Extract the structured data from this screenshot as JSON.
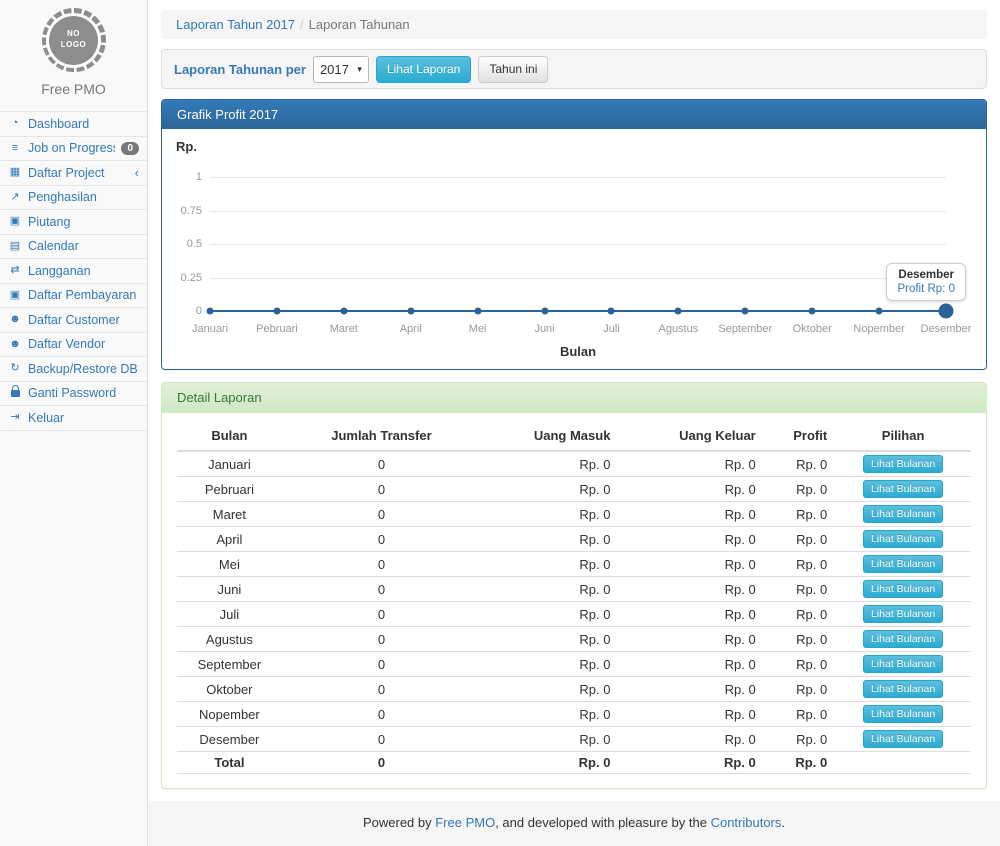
{
  "sidebar": {
    "logo_text_line1": "NO",
    "logo_text_line2": "LOGO",
    "app_name": "Free PMO",
    "items": [
      {
        "name": "dashboard",
        "label": "Dashboard",
        "icon": "dashboard-icon",
        "glyph": "◔"
      },
      {
        "name": "job-on-progress",
        "label": "Job on Progress",
        "icon": "tasks-icon",
        "glyph": "≡",
        "badge": "0"
      },
      {
        "name": "daftar-project",
        "label": "Daftar Project",
        "icon": "table-icon",
        "glyph": "▦",
        "chevron": "‹"
      },
      {
        "name": "penghasilan",
        "label": "Penghasilan",
        "icon": "line-chart-icon",
        "glyph": "↗"
      },
      {
        "name": "piutang",
        "label": "Piutang",
        "icon": "money-icon",
        "glyph": "▣"
      },
      {
        "name": "calendar",
        "label": "Calendar",
        "icon": "calendar-icon",
        "glyph": "▤"
      },
      {
        "name": "langganan",
        "label": "Langganan",
        "icon": "retweet-icon",
        "glyph": "⇄"
      },
      {
        "name": "daftar-pembayaran",
        "label": "Daftar Pembayaran",
        "icon": "money-icon",
        "glyph": "▣"
      },
      {
        "name": "daftar-customer",
        "label": "Daftar Customer",
        "icon": "users-icon",
        "glyph": "☻"
      },
      {
        "name": "daftar-vendor",
        "label": "Daftar Vendor",
        "icon": "users-icon",
        "glyph": "☻"
      },
      {
        "name": "backup-restore-db",
        "label": "Backup/Restore DB",
        "icon": "refresh-icon",
        "glyph": "↻"
      },
      {
        "name": "ganti-password",
        "label": "Ganti Password",
        "icon": "lock-icon",
        "icon_type": "css-lock"
      },
      {
        "name": "keluar",
        "label": "Keluar",
        "icon": "sign-out-icon",
        "glyph": "⇥"
      }
    ]
  },
  "breadcrumb": {
    "link": "Laporan Tahun 2017",
    "separator": "/",
    "current": "Laporan Tahunan"
  },
  "filter": {
    "label": "Laporan Tahunan per",
    "year_value": "2017",
    "caret": "▾",
    "view_button": "Lihat Laporan",
    "this_year_button": "Tahun ini"
  },
  "chart_panel": {
    "title": "Grafik Profit 2017"
  },
  "chart_data": {
    "type": "line",
    "title": "Grafik Profit 2017",
    "ylabel": "Rp.",
    "xlabel": "Bulan",
    "categories": [
      "Januari",
      "Pebruari",
      "Maret",
      "April",
      "Mei",
      "Juni",
      "Juli",
      "Agustus",
      "September",
      "Oktober",
      "Nopember",
      "Desember"
    ],
    "values": [
      0,
      0,
      0,
      0,
      0,
      0,
      0,
      0,
      0,
      0,
      0,
      0
    ],
    "yticks": [
      1,
      0.75,
      0.5,
      0.25,
      0
    ],
    "ylim": [
      0,
      1
    ],
    "grid": true,
    "legend": false,
    "line_color": "#2a6496",
    "highlight_index": 11,
    "tooltip": {
      "title": "Desember",
      "value": "Profit Rp: 0"
    }
  },
  "detail": {
    "panel_title": "Detail Laporan",
    "headers": [
      "Bulan",
      "Jumlah Transfer",
      "Uang Masuk",
      "Uang Keluar",
      "Profit",
      "Pilihan"
    ],
    "action_label": "Lihat Bulanan",
    "rows": [
      [
        "Januari",
        "0",
        "Rp. 0",
        "Rp. 0",
        "Rp. 0"
      ],
      [
        "Pebruari",
        "0",
        "Rp. 0",
        "Rp. 0",
        "Rp. 0"
      ],
      [
        "Maret",
        "0",
        "Rp. 0",
        "Rp. 0",
        "Rp. 0"
      ],
      [
        "April",
        "0",
        "Rp. 0",
        "Rp. 0",
        "Rp. 0"
      ],
      [
        "Mei",
        "0",
        "Rp. 0",
        "Rp. 0",
        "Rp. 0"
      ],
      [
        "Juni",
        "0",
        "Rp. 0",
        "Rp. 0",
        "Rp. 0"
      ],
      [
        "Juli",
        "0",
        "Rp. 0",
        "Rp. 0",
        "Rp. 0"
      ],
      [
        "Agustus",
        "0",
        "Rp. 0",
        "Rp. 0",
        "Rp. 0"
      ],
      [
        "September",
        "0",
        "Rp. 0",
        "Rp. 0",
        "Rp. 0"
      ],
      [
        "Oktober",
        "0",
        "Rp. 0",
        "Rp. 0",
        "Rp. 0"
      ],
      [
        "Nopember",
        "0",
        "Rp. 0",
        "Rp. 0",
        "Rp. 0"
      ],
      [
        "Desember",
        "0",
        "Rp. 0",
        "Rp. 0",
        "Rp. 0"
      ]
    ],
    "total": [
      "Total",
      "0",
      "Rp. 0",
      "Rp. 0",
      "Rp. 0"
    ]
  },
  "footer": {
    "prefix": "Powered by ",
    "link1": "Free PMO",
    "middle": ", and developed with pleasure by the ",
    "link2": "Contributors",
    "suffix": "."
  },
  "colors": {
    "accent": "#337ab7",
    "panel_primary_from": "#337ab7",
    "panel_primary_to": "#2b669a",
    "btn_info_from": "#5bc0de",
    "btn_info_to": "#2aabd2",
    "success_bg": "#dff0d8",
    "success_text": "#3c763d",
    "chart_line": "#2a6496",
    "badge_bg": "#777777"
  }
}
